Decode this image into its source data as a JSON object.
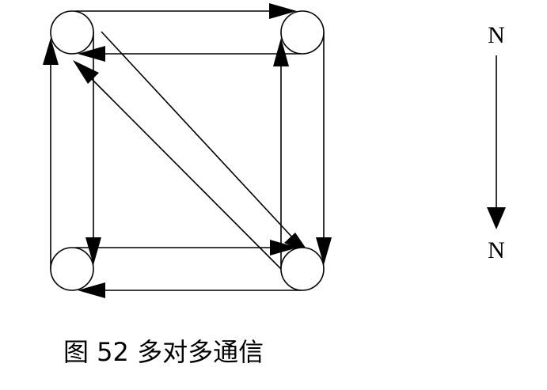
{
  "diagram": {
    "nodes": [
      {
        "id": "top-left"
      },
      {
        "id": "top-right"
      },
      {
        "id": "bottom-left"
      },
      {
        "id": "bottom-right"
      }
    ],
    "edges": [
      {
        "from": "top-left",
        "to": "top-right"
      },
      {
        "from": "top-right",
        "to": "top-left"
      },
      {
        "from": "bottom-left",
        "to": "bottom-right"
      },
      {
        "from": "bottom-right",
        "to": "bottom-left"
      },
      {
        "from": "top-left",
        "to": "bottom-left"
      },
      {
        "from": "bottom-left",
        "to": "top-left"
      },
      {
        "from": "top-right",
        "to": "bottom-right"
      },
      {
        "from": "bottom-right",
        "to": "top-right"
      },
      {
        "from": "top-left",
        "to": "bottom-right"
      },
      {
        "from": "bottom-right",
        "to": "top-left"
      }
    ],
    "legend": {
      "top_label": "N",
      "bottom_label": "N"
    },
    "caption": "图 52 多对多通信"
  }
}
